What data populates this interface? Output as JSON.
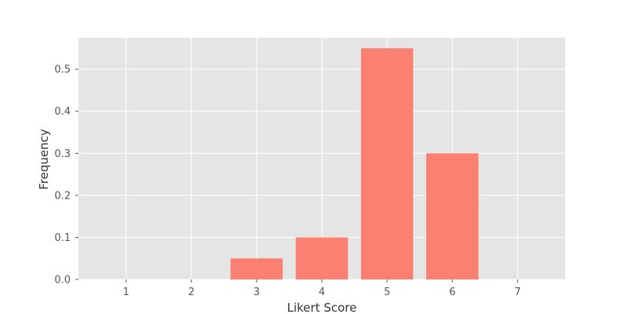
{
  "chart_data": {
    "type": "bar",
    "title": "",
    "xlabel": "Likert Score",
    "ylabel": "Frequency",
    "categories": [
      "1",
      "2",
      "3",
      "4",
      "5",
      "6",
      "7"
    ],
    "x": [
      1,
      2,
      3,
      4,
      5,
      6,
      7
    ],
    "values": [
      0.0,
      0.0,
      0.05,
      0.1,
      0.55,
      0.3,
      0.0
    ],
    "xlim": [
      0.27,
      7.73
    ],
    "ylim": [
      0.0,
      0.575
    ],
    "xticks": [
      1,
      2,
      3,
      4,
      5,
      6,
      7
    ],
    "xtick_labels": [
      "1",
      "2",
      "3",
      "4",
      "5",
      "6",
      "7"
    ],
    "yticks": [
      0.0,
      0.1,
      0.2,
      0.3,
      0.4,
      0.5
    ],
    "ytick_labels": [
      "0.0",
      "0.1",
      "0.2",
      "0.3",
      "0.4",
      "0.5"
    ],
    "grid": true,
    "legend": "none",
    "colors": {
      "bar": "#fa8072",
      "plot_background": "#e5e5e5",
      "grid": "#ffffff",
      "tick": "#555555",
      "text": "#333333"
    }
  }
}
